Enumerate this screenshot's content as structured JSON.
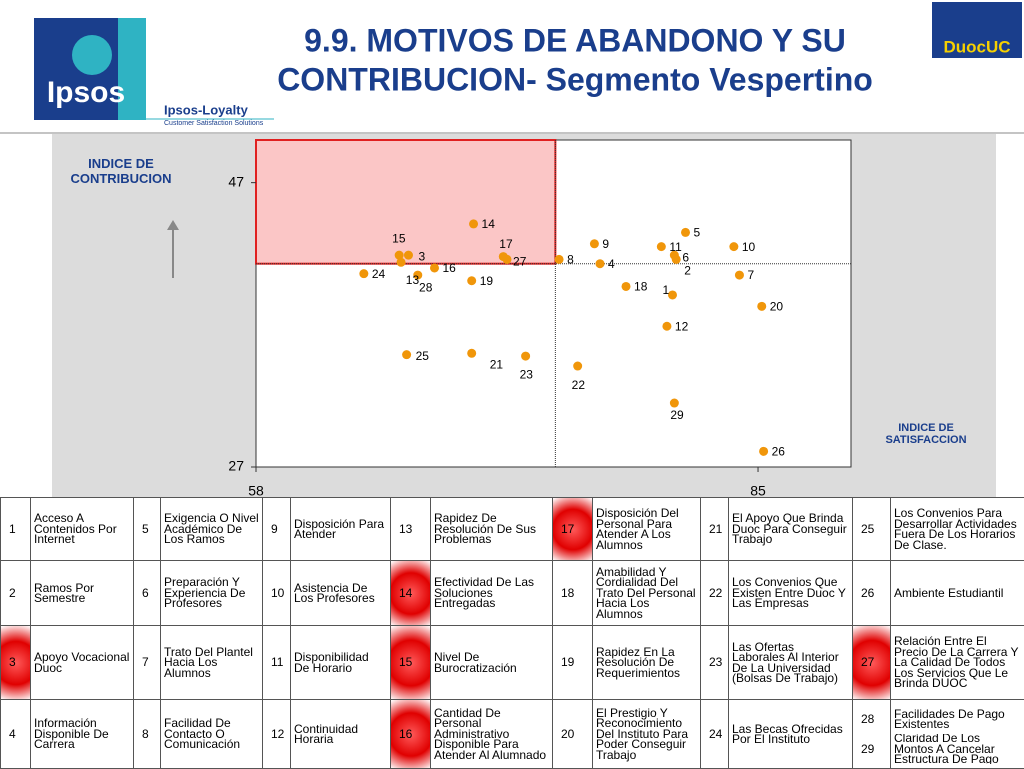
{
  "header": {
    "title_line1": "9.9. MOTIVOS DE ABANDONO Y SU",
    "title_line2": "CONTRIBUCION- Segmento Vespertino",
    "logo_left": "Ipsos",
    "logo_brand": "Ipsos-Loyalty",
    "logo_tagline": "Customer Satisfaction Solutions",
    "logo_right": "DuocUC"
  },
  "chart_data": {
    "type": "scatter",
    "y_label": "INDICE DE CONTRIBUCION",
    "x_label": "INDICE DE SATISFACCION",
    "color": "#f0960a",
    "labels": [
      "1",
      "2",
      "3",
      "4",
      "5",
      "6",
      "7",
      "8",
      "9",
      "10",
      "11",
      "12",
      "13",
      "14",
      "15",
      "16",
      "17",
      "18",
      "19",
      "20",
      "21",
      "22",
      "23",
      "24",
      "25",
      "26",
      "27",
      "28",
      "29"
    ],
    "x": [
      80.4,
      80.6,
      66.2,
      76.5,
      81.1,
      80.5,
      84.0,
      74.3,
      76.2,
      83.7,
      79.8,
      80.1,
      66.7,
      69.7,
      65.7,
      67.6,
      71.3,
      77.9,
      69.6,
      85.2,
      69.6,
      75.3,
      72.5,
      63.8,
      66.1,
      85.3,
      71.5,
      65.8,
      80.5
    ],
    "values": [
      39.1,
      41.6,
      41.9,
      41.3,
      43.5,
      41.9,
      40.5,
      41.6,
      42.7,
      42.5,
      42.5,
      36.9,
      40.5,
      44.1,
      41.9,
      41.0,
      41.8,
      39.7,
      40.1,
      38.3,
      35.0,
      34.1,
      34.8,
      40.6,
      34.9,
      28.1,
      41.6,
      41.4,
      31.5
    ],
    "xlim": [
      58,
      90
    ],
    "ylim": [
      27,
      50
    ],
    "xticks": [
      58,
      85
    ],
    "yticks": [
      27,
      47
    ],
    "xref": 74.1,
    "yref": 41.3
  },
  "table": {
    "rows": [
      [
        [
          {
            "num": "1",
            "text": "Acceso A Contenidos Por Internet"
          }
        ],
        [
          {
            "num": "5",
            "text": "Exigencia O Nivel Académico De Los Ramos"
          }
        ],
        [
          {
            "num": "9",
            "text": "Disposición Para Atender"
          }
        ],
        [
          {
            "num": "13",
            "text": "Rapidez De Resolución De Sus Problemas"
          }
        ],
        [
          {
            "num": "17",
            "text": "Disposición Del Personal Para Atender A Los Alumnos",
            "highlight": true
          }
        ],
        [
          {
            "num": "21",
            "text": "El Apoyo Que Brinda Duoc Para Conseguir Trabajo"
          }
        ],
        [
          {
            "num": "25",
            "text": "Los Convenios Para Desarrollar Actividades Fuera De Los Horarios De Clase."
          }
        ]
      ],
      [
        [
          {
            "num": "2",
            "text": "Ramos Por Semestre"
          }
        ],
        [
          {
            "num": "6",
            "text": "Preparación Y Experiencia De Profesores"
          }
        ],
        [
          {
            "num": "10",
            "text": "Asistencia De Los Profesores"
          }
        ],
        [
          {
            "num": "14",
            "text": "Efectividad De Las Soluciones Entregadas",
            "highlight": true
          }
        ],
        [
          {
            "num": "18",
            "text": "Amabilidad Y Cordialidad Del Trato Del Personal Hacia Los Alumnos"
          }
        ],
        [
          {
            "num": "22",
            "text": "Los Convenios Que Existen Entre Duoc Y Las Empresas"
          }
        ],
        [
          {
            "num": "26",
            "text": "Ambiente Estudiantil"
          }
        ]
      ],
      [
        [
          {
            "num": "3",
            "text": "Apoyo Vocacional Duoc",
            "highlight": true
          }
        ],
        [
          {
            "num": "7",
            "text": "Trato Del Plantel Hacia Los Alumnos"
          }
        ],
        [
          {
            "num": "11",
            "text": "Disponibilidad De Horario"
          }
        ],
        [
          {
            "num": "15",
            "text": "Nivel De Burocratización",
            "highlight": true
          }
        ],
        [
          {
            "num": "19",
            "text": "Rapidez En La Resolución De Requerimientos"
          }
        ],
        [
          {
            "num": "23",
            "text": "Las Ofertas Laborales Al Interior De La Universidad (Bolsas De Trabajo)"
          }
        ],
        [
          {
            "num": "27",
            "text": "Relación Entre El Precio De La Carrera Y La Calidad De Todos Los Servicios Que Le Brinda DUOC",
            "highlight": true
          }
        ]
      ],
      [
        [
          {
            "num": "4",
            "text": "Información Disponible De Carrera"
          }
        ],
        [
          {
            "num": "8",
            "text": "Facilidad De Contacto O Comunicación"
          }
        ],
        [
          {
            "num": "12",
            "text": "Continuidad Horaria"
          }
        ],
        [
          {
            "num": "16",
            "text": "Cantidad De Personal Administrativo Disponible Para Atender Al Alumnado",
            "highlight": true
          }
        ],
        [
          {
            "num": "20",
            "text": "El Prestigio Y Reconocimiento Del Instituto Para Poder Conseguir Trabajo"
          }
        ],
        [
          {
            "num": "24",
            "text": "Las Becas Ofrecidas Por El Instituto"
          }
        ],
        [
          {
            "num": "28",
            "text": "Facilidades De Pago Existentes"
          },
          {
            "num": "29",
            "text": "Claridad De Los Montos A Cancelar Estructura De Pago"
          }
        ]
      ]
    ]
  }
}
